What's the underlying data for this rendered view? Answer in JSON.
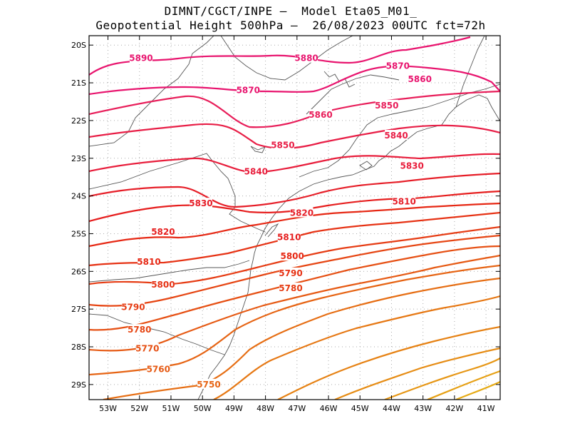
{
  "title": {
    "line1": "DIMNT/CGCT/INPE —  Model Eta05_M01_",
    "line2": "Geopotential Height 500hPa —  26/08/2023 00UTC fct=72h"
  },
  "axes": {
    "lat_labels": [
      "20S",
      "21S",
      "22S",
      "23S",
      "24S",
      "25S",
      "26S",
      "27S",
      "28S",
      "29S"
    ],
    "lat_values": [
      -20,
      -21,
      -22,
      -23,
      -24,
      -25,
      -26,
      -27,
      -28,
      -29
    ],
    "lon_labels": [
      "53W",
      "52W",
      "51W",
      "50W",
      "49W",
      "48W",
      "47W",
      "46W",
      "45W",
      "44W",
      "43W",
      "42W",
      "41W"
    ],
    "lon_values": [
      -53,
      -52,
      -51,
      -50,
      -49,
      -48,
      -47,
      -46,
      -45,
      -44,
      -43,
      -42,
      -41
    ],
    "lat_range": [
      -29.4,
      -19.75
    ],
    "lon_range": [
      -53.6,
      -40.55
    ]
  },
  "contour_labels": [
    {
      "text": "5890",
      "lon": -51.95,
      "lat": -20.35,
      "color": "#e8146e"
    },
    {
      "text": "5880",
      "lon": -46.7,
      "lat": -20.35,
      "color": "#e8146e"
    },
    {
      "text": "5870",
      "lon": -43.8,
      "lat": -20.55,
      "color": "#e8146e"
    },
    {
      "text": "5860",
      "lon": -43.1,
      "lat": -20.9,
      "color": "#e8146e"
    },
    {
      "text": "5870",
      "lon": -48.55,
      "lat": -21.2,
      "color": "#e8146e"
    },
    {
      "text": "5860",
      "lon": -46.25,
      "lat": -21.85,
      "color": "#e81e5a"
    },
    {
      "text": "5850",
      "lon": -44.15,
      "lat": -21.6,
      "color": "#e81e5a"
    },
    {
      "text": "5840",
      "lon": -43.85,
      "lat": -22.4,
      "color": "#e81e46"
    },
    {
      "text": "5850",
      "lon": -47.45,
      "lat": -22.65,
      "color": "#e81e46"
    },
    {
      "text": "5830",
      "lon": -43.35,
      "lat": -23.2,
      "color": "#e81e3c"
    },
    {
      "text": "5840",
      "lon": -48.3,
      "lat": -23.35,
      "color": "#e81e3c"
    },
    {
      "text": "5810",
      "lon": -43.6,
      "lat": -24.15,
      "color": "#e61e28"
    },
    {
      "text": "5830",
      "lon": -50.05,
      "lat": -24.2,
      "color": "#e61e28"
    },
    {
      "text": "5820",
      "lon": -46.85,
      "lat": -24.45,
      "color": "#e61e28"
    },
    {
      "text": "5820",
      "lon": -51.25,
      "lat": -24.95,
      "color": "#e61e1e"
    },
    {
      "text": "5810",
      "lon": -47.25,
      "lat": -25.1,
      "color": "#e61e1e"
    },
    {
      "text": "5800",
      "lon": -47.15,
      "lat": -25.6,
      "color": "#e62814"
    },
    {
      "text": "5810",
      "lon": -51.7,
      "lat": -25.75,
      "color": "#e62814"
    },
    {
      "text": "5790",
      "lon": -47.2,
      "lat": -26.05,
      "color": "#e63214"
    },
    {
      "text": "5800",
      "lon": -51.25,
      "lat": -26.35,
      "color": "#e63214"
    },
    {
      "text": "5780",
      "lon": -47.2,
      "lat": -26.45,
      "color": "#e63c14"
    },
    {
      "text": "5790",
      "lon": -52.2,
      "lat": -26.95,
      "color": "#e63c14"
    },
    {
      "text": "5780",
      "lon": -52.0,
      "lat": -27.55,
      "color": "#e64614"
    },
    {
      "text": "5770",
      "lon": -51.75,
      "lat": -28.05,
      "color": "#e65014"
    },
    {
      "text": "5760",
      "lon": -51.4,
      "lat": -28.6,
      "color": "#e65a14"
    },
    {
      "text": "5750",
      "lon": -49.8,
      "lat": -29.0,
      "color": "#e66414"
    }
  ]
}
